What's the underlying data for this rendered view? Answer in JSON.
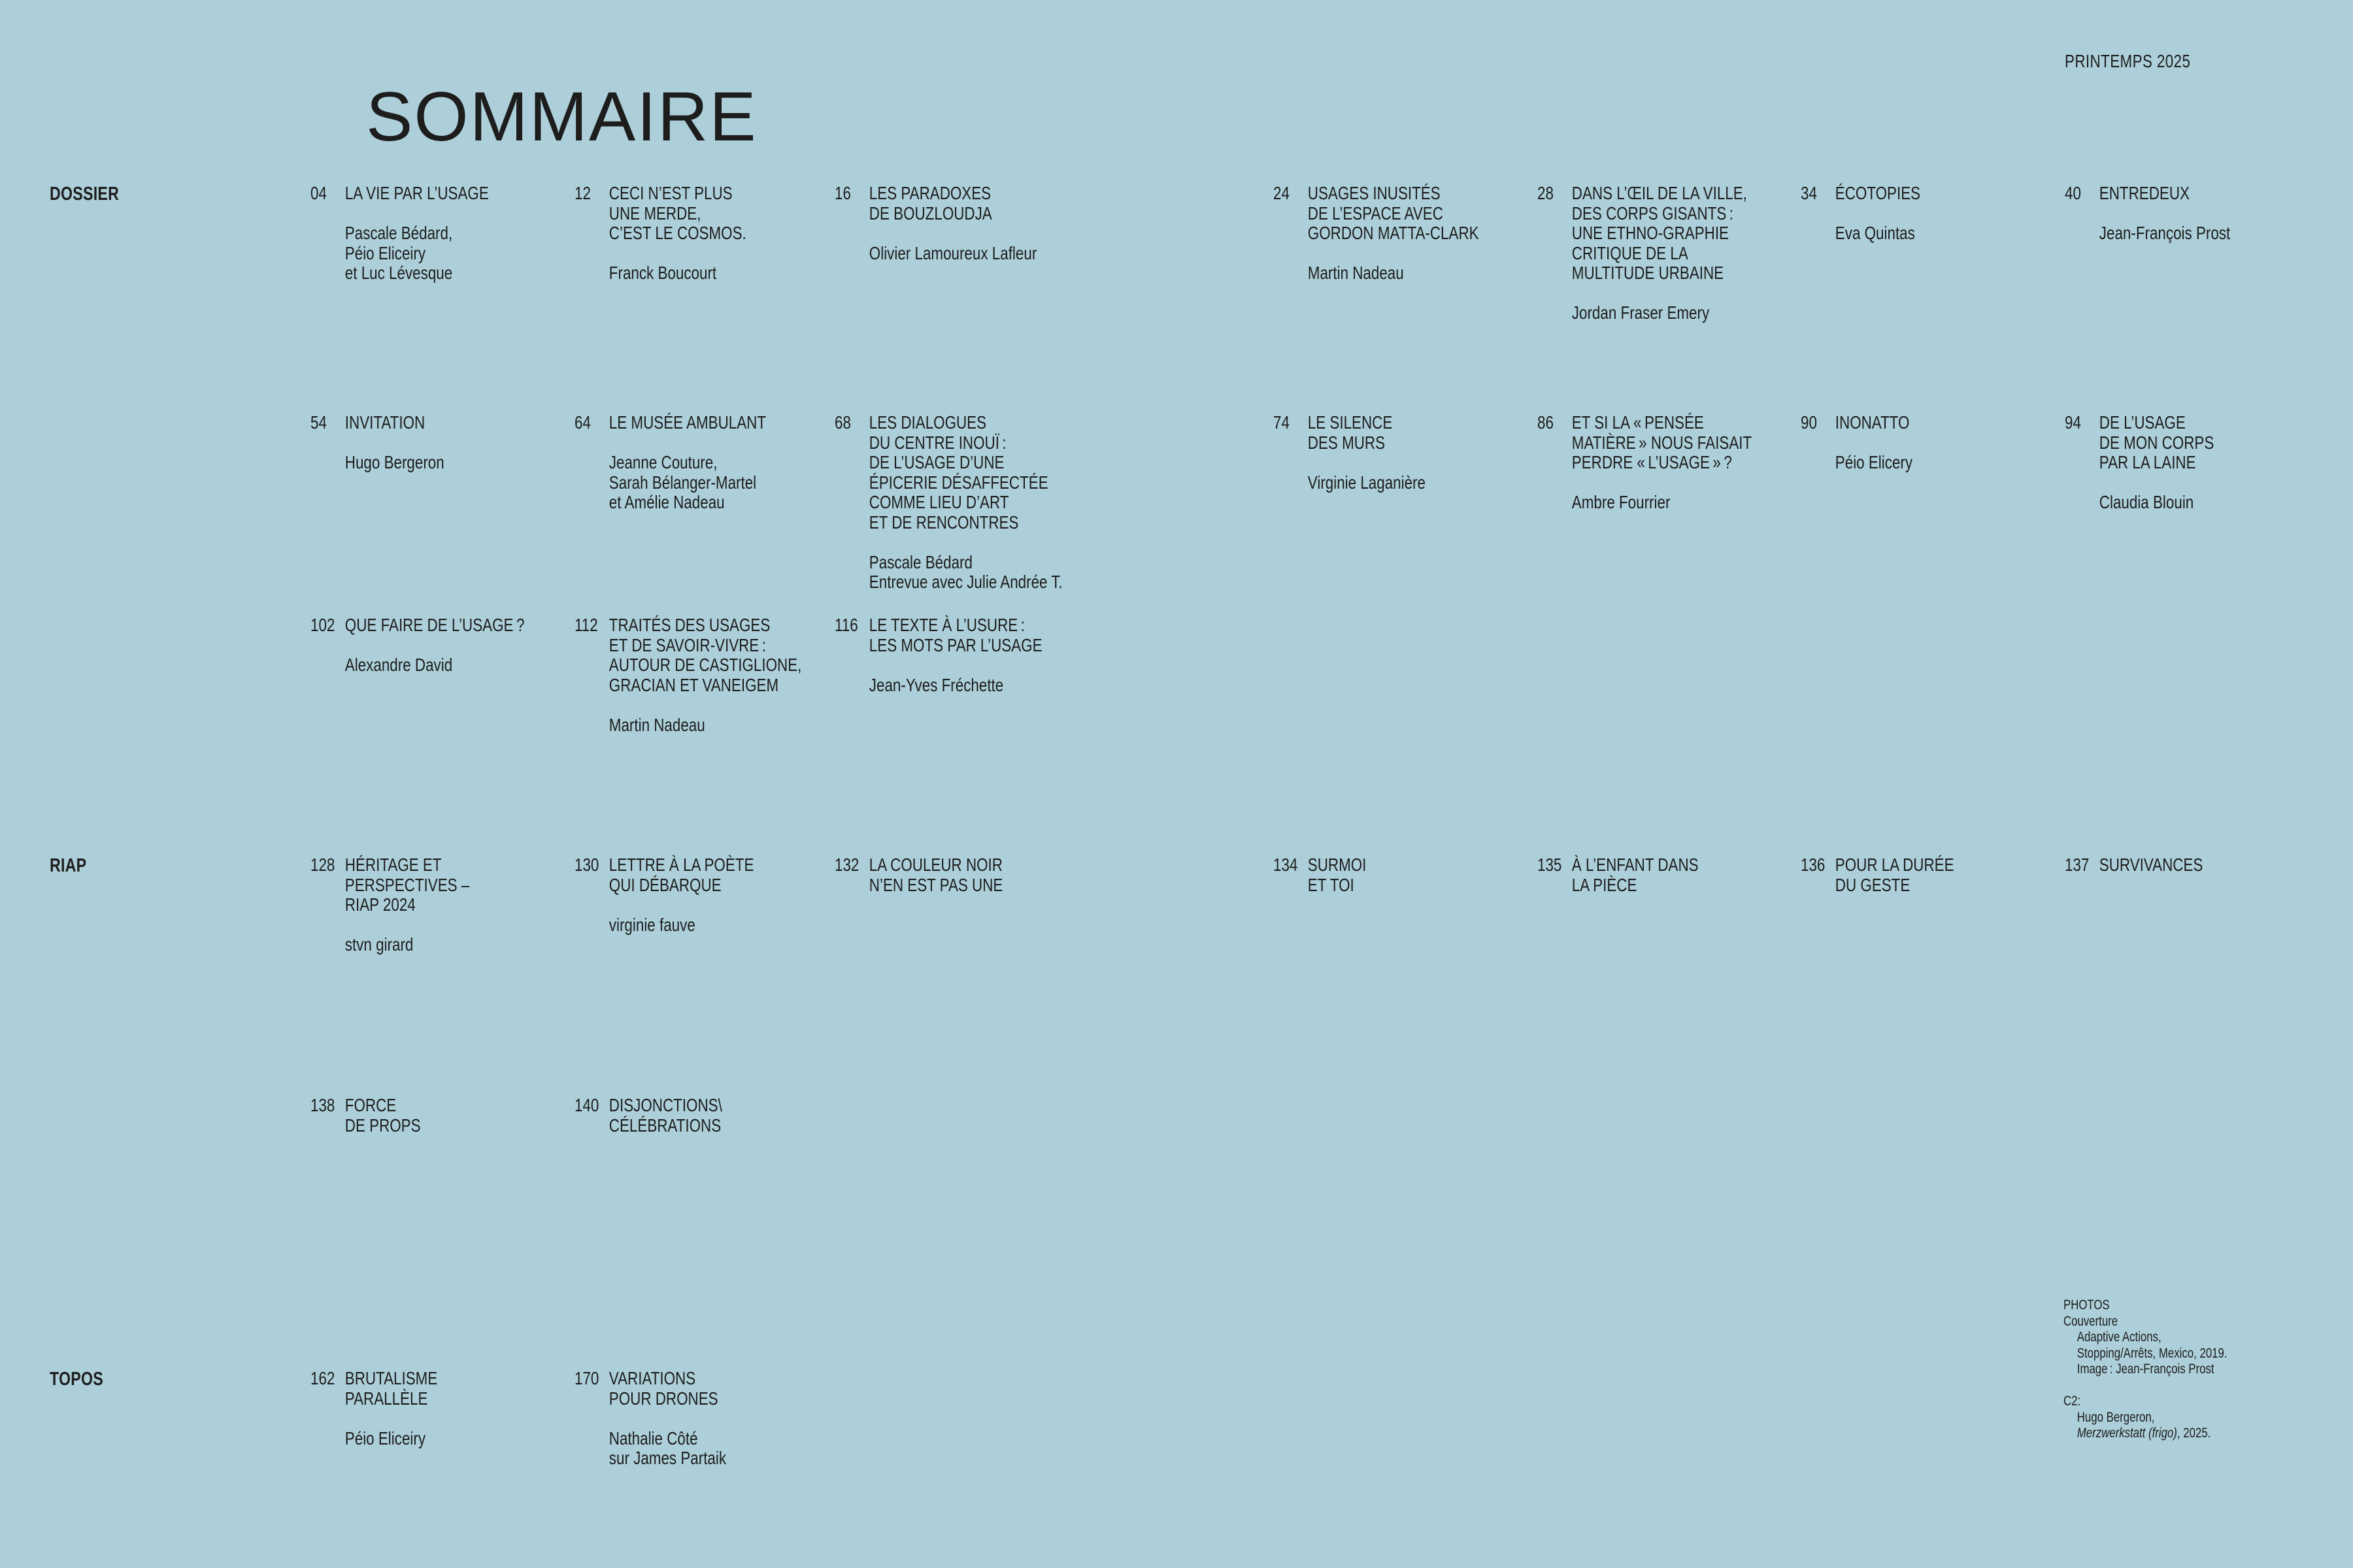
{
  "page": {
    "title": "SOMMAIRE",
    "issue": "PRINTEMPS 2025"
  },
  "colors": {
    "background": "#ADCFD9",
    "text": "#1D1D1D"
  },
  "rows": [
    {
      "label": "DOSSIER",
      "entries": [
        {
          "num": "04",
          "title": [
            "LA VIE PAR L’USAGE"
          ],
          "authors": [
            "Pascale Bédard,",
            "Péio Eliceiry",
            "et Luc Lévesque"
          ]
        },
        {
          "num": "12",
          "title": [
            "CECI N’EST PLUS",
            "UNE MERDE,",
            "C’EST LE COSMOS."
          ],
          "authors": [
            "Franck Boucourt"
          ]
        },
        {
          "num": "16",
          "title": [
            "LES PARADOXES",
            "DE BOUZLOUDJA"
          ],
          "authors": [
            "Olivier Lamoureux Lafleur"
          ]
        },
        {
          "num": "24",
          "title": [
            "USAGES INUSITÉS",
            "DE L’ESPACE AVEC",
            "GORDON MATTA-CLARK"
          ],
          "authors": [
            "Martin Nadeau"
          ]
        },
        {
          "num": "28",
          "title": [
            "DANS L’ŒIL DE LA VILLE,",
            "DES CORPS GISANTS :",
            "UNE ETHNO-GRAPHIE",
            "CRITIQUE DE LA",
            "MULTITUDE URBAINE"
          ],
          "authors": [
            "Jordan Fraser Emery"
          ]
        },
        {
          "num": "34",
          "title": [
            "ÉCOTOPIES"
          ],
          "authors": [
            "Eva Quintas"
          ]
        },
        {
          "num": "40",
          "title": [
            "ENTREDEUX"
          ],
          "authors": [
            "Jean-François Prost"
          ]
        }
      ]
    },
    {
      "entries": [
        {
          "num": "54",
          "title": [
            "INVITATION"
          ],
          "authors": [
            "Hugo Bergeron"
          ]
        },
        {
          "num": "64",
          "title": [
            "LE MUSÉE AMBULANT"
          ],
          "authors": [
            "Jeanne Couture,",
            "Sarah Bélanger-Martel",
            "et Amélie Nadeau"
          ]
        },
        {
          "num": "68",
          "title": [
            "LES DIALOGUES",
            "DU CENTRE INOUÏ :",
            "DE L’USAGE D’UNE",
            "ÉPICERIE DÉSAFFECTÉE",
            "COMME LIEU D’ART",
            "ET DE RENCONTRES"
          ],
          "authors": [
            "Pascale Bédard",
            "Entrevue avec Julie Andrée T."
          ]
        },
        {
          "num": "74",
          "title": [
            "LE SILENCE",
            "DES MURS"
          ],
          "authors": [
            "Virginie Laganière"
          ]
        },
        {
          "num": "86",
          "title": [
            "ET SI LA « PENSÉE",
            "MATIÈRE » NOUS FAISAIT",
            "PERDRE « L’USAGE » ?"
          ],
          "authors": [
            "Ambre Fourrier"
          ]
        },
        {
          "num": "90",
          "title": [
            "INONATTO"
          ],
          "authors": [
            "Péio Elicery"
          ]
        },
        {
          "num": "94",
          "title": [
            "DE L’USAGE",
            "DE MON CORPS",
            "PAR LA LAINE"
          ],
          "authors": [
            "Claudia Blouin"
          ]
        }
      ]
    },
    {
      "entries": [
        {
          "num": "102",
          "title": [
            "QUE FAIRE DE L’USAGE ?"
          ],
          "authors": [
            "Alexandre David"
          ]
        },
        {
          "num": "112",
          "title": [
            "TRAITÉS DES USAGES",
            "ET DE SAVOIR-VIVRE :",
            "AUTOUR DE CASTIGLIONE,",
            "GRACIAN ET VANEIGEM"
          ],
          "authors": [
            "Martin Nadeau"
          ]
        },
        {
          "num": "116",
          "title": [
            "LE TEXTE À L’USURE :",
            "LES MOTS PAR L’USAGE"
          ],
          "authors": [
            "Jean-Yves Fréchette"
          ]
        }
      ]
    },
    {
      "label": "RIAP",
      "entries": [
        {
          "num": "128",
          "title": [
            "HÉRITAGE ET",
            "PERSPECTIVES –",
            "RIAP 2024"
          ],
          "authors": [
            "stvn girard"
          ]
        },
        {
          "num": "130",
          "title": [
            "LETTRE À LA POÈTE",
            "QUI DÉBARQUE"
          ],
          "authors": [
            "virginie fauve"
          ]
        },
        {
          "num": "132",
          "title": [
            "LA COULEUR NOIR",
            "N’EN EST PAS UNE"
          ]
        },
        {
          "num": "134",
          "title": [
            "SURMOI",
            "ET TOI"
          ]
        },
        {
          "num": "135",
          "title": [
            "À L’ENFANT DANS",
            "LA PIÈCE"
          ]
        },
        {
          "num": "136",
          "title": [
            "POUR LA DURÉE",
            "DU GESTE"
          ]
        },
        {
          "num": "137",
          "title": [
            "SURVIVANCES"
          ]
        }
      ]
    },
    {
      "entries": [
        {
          "num": "138",
          "title": [
            "FORCE",
            "DE PROPS"
          ]
        },
        {
          "num": "140",
          "title": [
            "DISJONCTIONS\\",
            "CÉLÉBRATIONS"
          ]
        }
      ]
    },
    {
      "label": "TOPOS",
      "entries": [
        {
          "num": "162",
          "title": [
            "BRUTALISME",
            "PARALLÈLE"
          ],
          "authors": [
            "Péio Eliceiry"
          ]
        },
        {
          "num": "170",
          "title": [
            "VARIATIONS",
            "POUR DRONES"
          ],
          "authors": [
            "Nathalie Côté",
            "sur James Partaik"
          ]
        }
      ]
    }
  ],
  "credits": {
    "heading": "PHOTOS",
    "cover_label": "Couverture",
    "cover_details": [
      "Adaptive Actions,",
      "Stopping/Arrêts, Mexico, 2019.",
      "Image : Jean-François Prost"
    ],
    "c2_label": "C2:",
    "c2_author": "Hugo Bergeron,",
    "c2_work": "Merzwerkstatt (frigo)",
    "c2_suffix": ", 2025."
  }
}
